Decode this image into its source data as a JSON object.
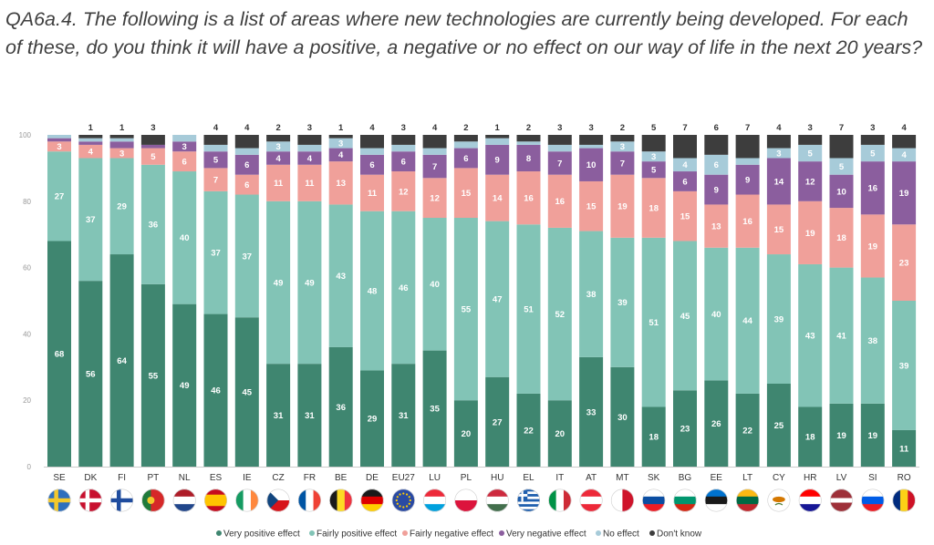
{
  "question": "QA6a.4. The following is a list of areas where new technologies are currently being developed. For each of these, do you think it will have a positive, a negative or no effect on our way of life in the next 20 years?",
  "chart_data": {
    "type": "bar",
    "stacked": true,
    "ylim": [
      0,
      100
    ],
    "yticks": [
      0,
      20,
      40,
      60,
      80,
      100
    ],
    "legend_position": "bottom",
    "categories": [
      "SE",
      "DK",
      "FI",
      "PT",
      "NL",
      "ES",
      "IE",
      "CZ",
      "FR",
      "BE",
      "DE",
      "EU27",
      "LU",
      "PL",
      "HU",
      "EL",
      "IT",
      "AT",
      "MT",
      "SK",
      "BG",
      "EE",
      "LT",
      "CY",
      "HR",
      "LV",
      "SI",
      "RO"
    ],
    "series": [
      {
        "name": "Very positive effect",
        "color": "#3f8670",
        "values": [
          68,
          56,
          64,
          55,
          49,
          46,
          45,
          31,
          31,
          36,
          29,
          31,
          35,
          20,
          27,
          22,
          20,
          33,
          30,
          18,
          23,
          26,
          22,
          25,
          18,
          19,
          19,
          11
        ]
      },
      {
        "name": "Fairly positive effect",
        "color": "#82c4b6",
        "values": [
          27,
          37,
          29,
          36,
          40,
          37,
          37,
          49,
          49,
          43,
          48,
          46,
          40,
          55,
          47,
          51,
          52,
          38,
          39,
          51,
          45,
          40,
          44,
          39,
          43,
          41,
          38,
          39
        ]
      },
      {
        "name": "Fairly negative effect",
        "color": "#f0a09a",
        "values": [
          3,
          4,
          3,
          5,
          6,
          7,
          6,
          11,
          11,
          13,
          11,
          12,
          12,
          15,
          14,
          16,
          16,
          15,
          19,
          18,
          15,
          13,
          16,
          15,
          19,
          18,
          19,
          23
        ]
      },
      {
        "name": "Very negative effect",
        "color": "#8b5e9e",
        "values": [
          1,
          1,
          2,
          1,
          3,
          5,
          6,
          4,
          4,
          4,
          6,
          6,
          7,
          6,
          9,
          8,
          7,
          10,
          7,
          5,
          6,
          9,
          9,
          14,
          12,
          10,
          16,
          19
        ]
      },
      {
        "name": "No effect",
        "color": "#a7cbd9",
        "values": [
          1,
          1,
          1,
          0,
          2,
          2,
          2,
          3,
          2,
          3,
          2,
          2,
          2,
          2,
          2,
          1,
          2,
          1,
          3,
          3,
          4,
          6,
          2,
          3,
          5,
          5,
          5,
          4
        ]
      },
      {
        "name": "Don't know",
        "color": "#3d3d3d",
        "values": [
          0,
          1,
          1,
          3,
          0,
          4,
          4,
          2,
          3,
          1,
          4,
          3,
          4,
          2,
          1,
          2,
          3,
          3,
          2,
          5,
          7,
          6,
          7,
          4,
          3,
          7,
          3,
          4
        ]
      }
    ],
    "labels": [
      [
        68,
        56,
        64,
        55,
        49,
        46,
        45,
        31,
        31,
        36,
        29,
        31,
        35,
        20,
        27,
        22,
        20,
        33,
        30,
        18,
        23,
        26,
        22,
        25,
        18,
        19,
        19,
        11
      ],
      [
        27,
        37,
        29,
        36,
        40,
        37,
        37,
        49,
        49,
        43,
        48,
        46,
        40,
        55,
        47,
        51,
        52,
        38,
        39,
        51,
        45,
        40,
        44,
        39,
        43,
        41,
        38,
        39
      ],
      [
        3,
        4,
        3,
        5,
        6,
        7,
        6,
        11,
        11,
        13,
        11,
        12,
        12,
        15,
        14,
        16,
        16,
        15,
        19,
        18,
        15,
        13,
        16,
        15,
        19,
        18,
        19,
        23
      ],
      [
        null,
        null,
        null,
        null,
        3,
        5,
        6,
        4,
        4,
        4,
        6,
        6,
        7,
        6,
        9,
        8,
        7,
        10,
        7,
        5,
        6,
        9,
        9,
        14,
        12,
        10,
        16,
        19
      ],
      [
        null,
        null,
        null,
        null,
        null,
        null,
        null,
        3,
        null,
        3,
        null,
        null,
        null,
        null,
        null,
        null,
        null,
        null,
        3,
        3,
        4,
        6,
        null,
        3,
        5,
        5,
        5,
        4
      ],
      [
        null,
        1,
        1,
        3,
        null,
        4,
        4,
        2,
        3,
        1,
        4,
        3,
        4,
        2,
        1,
        2,
        3,
        3,
        2,
        5,
        7,
        6,
        7,
        4,
        3,
        7,
        3,
        4
      ]
    ],
    "flags": {
      "SE": {
        "type": "nordic",
        "colors": [
          "#2e6fbd",
          "#f3c82c"
        ]
      },
      "DK": {
        "type": "nordic",
        "colors": [
          "#c8102e",
          "#ffffff"
        ]
      },
      "FI": {
        "type": "nordic",
        "colors": [
          "#ffffff",
          "#1f4c9e"
        ]
      },
      "PT": {
        "type": "v",
        "colors": [
          "#1f7a3a",
          "#d62828",
          "#d62828"
        ]
      },
      "NL": {
        "type": "h",
        "colors": [
          "#ae1c28",
          "#ffffff",
          "#21468b"
        ]
      },
      "ES": {
        "type": "hes",
        "colors": [
          "#c60b1e",
          "#ffc400",
          "#c60b1e"
        ]
      },
      "IE": {
        "type": "v",
        "colors": [
          "#169b62",
          "#ffffff",
          "#ff883e"
        ]
      },
      "CZ": {
        "type": "cz",
        "colors": [
          "#ffffff",
          "#d7141a",
          "#11457e"
        ]
      },
      "FR": {
        "type": "v",
        "colors": [
          "#0055a4",
          "#ffffff",
          "#ef4135"
        ]
      },
      "BE": {
        "type": "v",
        "colors": [
          "#1a1a1a",
          "#fdda24",
          "#ef3340"
        ]
      },
      "DE": {
        "type": "h",
        "colors": [
          "#1a1a1a",
          "#dd0000",
          "#ffce00"
        ]
      },
      "EU27": {
        "type": "eu",
        "colors": [
          "#2a4aa3",
          "#ffcc00"
        ]
      },
      "LU": {
        "type": "h",
        "colors": [
          "#ed2939",
          "#ffffff",
          "#00a1de"
        ]
      },
      "PL": {
        "type": "h",
        "colors": [
          "#ffffff",
          "#dc143c"
        ]
      },
      "HU": {
        "type": "h",
        "colors": [
          "#cd2a3e",
          "#ffffff",
          "#436f4d"
        ]
      },
      "EL": {
        "type": "gr",
        "colors": [
          "#1f5fae",
          "#ffffff"
        ]
      },
      "IT": {
        "type": "v",
        "colors": [
          "#009246",
          "#ffffff",
          "#ce2b37"
        ]
      },
      "AT": {
        "type": "h",
        "colors": [
          "#ed2939",
          "#ffffff",
          "#ed2939"
        ]
      },
      "MT": {
        "type": "v",
        "colors": [
          "#ffffff",
          "#cf142b"
        ]
      },
      "SK": {
        "type": "h",
        "colors": [
          "#ffffff",
          "#0b4ea2",
          "#ee1c25"
        ]
      },
      "BG": {
        "type": "h",
        "colors": [
          "#ffffff",
          "#00966e",
          "#d62612"
        ]
      },
      "EE": {
        "type": "h",
        "colors": [
          "#0072ce",
          "#1a1a1a",
          "#ffffff"
        ]
      },
      "LT": {
        "type": "h",
        "colors": [
          "#fdb913",
          "#006a44",
          "#c1272d"
        ]
      },
      "CY": {
        "type": "cy",
        "colors": [
          "#ffffff",
          "#d57800"
        ]
      },
      "HR": {
        "type": "h",
        "colors": [
          "#ff0000",
          "#ffffff",
          "#171796"
        ]
      },
      "LV": {
        "type": "hlv",
        "colors": [
          "#9e3039",
          "#ffffff",
          "#9e3039"
        ]
      },
      "SI": {
        "type": "h",
        "colors": [
          "#ffffff",
          "#005ce6",
          "#ed1c24"
        ]
      },
      "RO": {
        "type": "v",
        "colors": [
          "#002b7f",
          "#fcd116",
          "#ce1126"
        ]
      }
    }
  }
}
